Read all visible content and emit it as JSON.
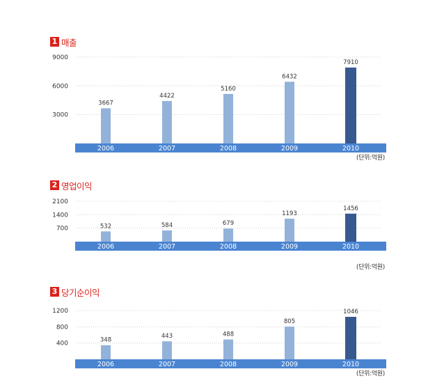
{
  "colors": {
    "accent": "#d9231c",
    "axis_band": "#4a84d1",
    "bar": "#93b2d9",
    "bar_highlight": "#36598f"
  },
  "chart_data": [
    {
      "type": "bar",
      "number": "1",
      "title": "매출",
      "unit": "(단위:억원)",
      "categories": [
        "2006",
        "2007",
        "2008",
        "2009",
        "2010"
      ],
      "values": [
        3667,
        4422,
        5160,
        6432,
        7910
      ],
      "value_labels": [
        "3667",
        "4422",
        "5160",
        "6432",
        "7910"
      ],
      "yticks": [
        3000,
        6000,
        9000
      ],
      "ylim": [
        0,
        9000
      ],
      "highlight_index": 4
    },
    {
      "type": "bar",
      "number": "2",
      "title": "영업이익",
      "unit": "(단위:억원)",
      "categories": [
        "2006",
        "2007",
        "2008",
        "2009",
        "2010"
      ],
      "values": [
        532,
        584,
        679,
        1193,
        1456
      ],
      "value_labels": [
        "532",
        "584",
        "679",
        "1193",
        "1456"
      ],
      "yticks": [
        700,
        1400,
        2100
      ],
      "ylim": [
        0,
        2100
      ],
      "highlight_index": 4
    },
    {
      "type": "bar",
      "number": "3",
      "title": "당기순이익",
      "unit": "(단위:억원)",
      "categories": [
        "2006",
        "2007",
        "2008",
        "2009",
        "2010"
      ],
      "values": [
        348,
        443,
        488,
        805,
        1046
      ],
      "value_labels": [
        "348",
        "443",
        "488",
        "805",
        "1046"
      ],
      "yticks": [
        400,
        800,
        1200
      ],
      "ylim": [
        0,
        1200
      ],
      "highlight_index": 4
    }
  ]
}
